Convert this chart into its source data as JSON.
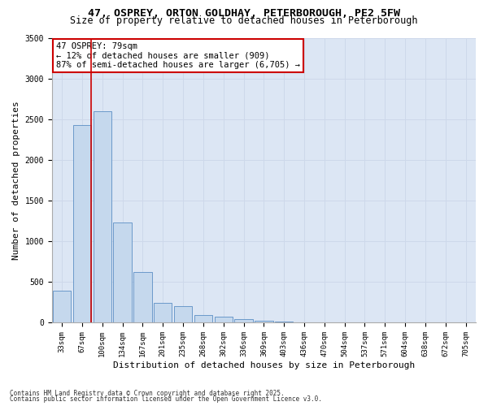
{
  "title1": "47, OSPREY, ORTON GOLDHAY, PETERBOROUGH, PE2 5FW",
  "title2": "Size of property relative to detached houses in Peterborough",
  "xlabel": "Distribution of detached houses by size in Peterborough",
  "ylabel": "Number of detached properties",
  "categories": [
    "33sqm",
    "67sqm",
    "100sqm",
    "134sqm",
    "167sqm",
    "201sqm",
    "235sqm",
    "268sqm",
    "302sqm",
    "336sqm",
    "369sqm",
    "403sqm",
    "436sqm",
    "470sqm",
    "504sqm",
    "537sqm",
    "571sqm",
    "604sqm",
    "638sqm",
    "672sqm",
    "705sqm"
  ],
  "values": [
    390,
    2430,
    2600,
    1230,
    620,
    240,
    200,
    90,
    70,
    45,
    25,
    10,
    0,
    0,
    0,
    0,
    0,
    0,
    0,
    0,
    0
  ],
  "bar_color": "#c5d8ed",
  "bar_edge_color": "#5b8ec4",
  "annotation_text": "47 OSPREY: 79sqm\n← 12% of detached houses are smaller (909)\n87% of semi-detached houses are larger (6,705) →",
  "annotation_box_color": "#ffffff",
  "annotation_box_edge": "#cc0000",
  "vline_color": "#cc0000",
  "ylim": [
    0,
    3500
  ],
  "yticks": [
    0,
    500,
    1000,
    1500,
    2000,
    2500,
    3000,
    3500
  ],
  "grid_color": "#cdd8ea",
  "bg_color": "#dce6f4",
  "footnote1": "Contains HM Land Registry data © Crown copyright and database right 2025.",
  "footnote2": "Contains public sector information licensed under the Open Government Licence v3.0.",
  "title_fontsize": 9.5,
  "subtitle_fontsize": 8.5,
  "xlabel_fontsize": 8,
  "ylabel_fontsize": 8,
  "tick_fontsize": 6.5,
  "annot_fontsize": 7.5,
  "footnote_fontsize": 5.5
}
